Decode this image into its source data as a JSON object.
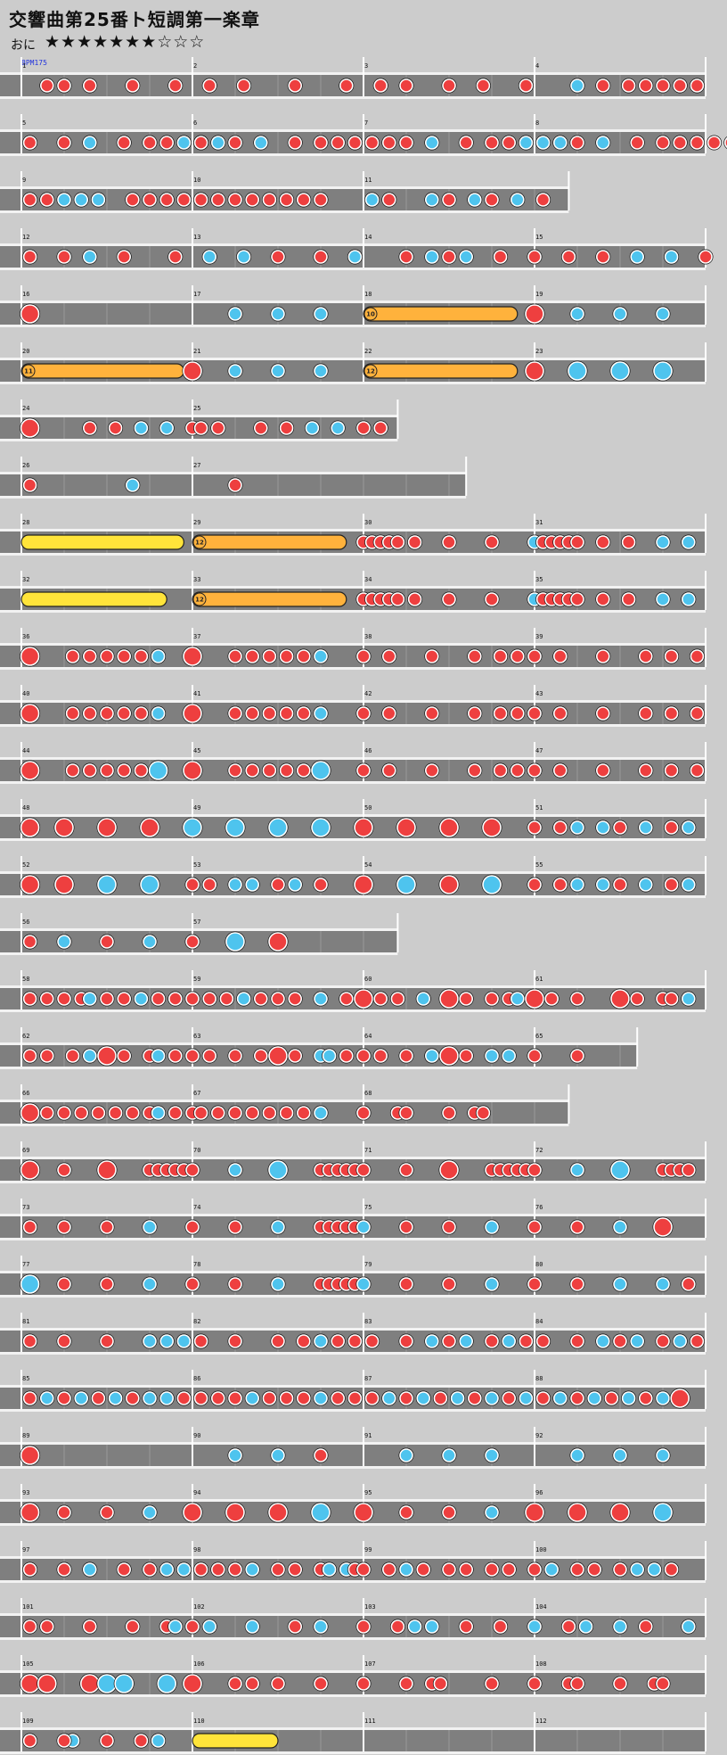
{
  "title": "交響曲第25番ト短調第一楽章",
  "difficulty": {
    "label": "おに",
    "stars": "★★★★★★★☆☆☆"
  },
  "bpm_label": "BPM175",
  "colors": {
    "background": "#cccccc",
    "lane": "#7f7f7f",
    "don": "#ee3f3f",
    "ka": "#4ec4ee",
    "drumroll": "#ffb23c",
    "balloon": "#ffe43a"
  },
  "rows": [
    {
      "measures": [
        1,
        2,
        3,
        4
      ],
      "end": 4,
      "notes": "r.15 r.25 r.4 r.65 r.9 r1.1 r1.3 r1.6 r1.9 r2.1 r2.25 r2.5 r2.7 r2.95 b3.25 r3.4 r3.55 r3.65 r3.75 r3.85 r3.95"
    },
    {
      "measures": [
        5,
        6,
        7,
        8
      ],
      "end": 4,
      "notes": "r.05 r.25 b.4 r.6 r.75 r.85 b.95 b1.05 b1.15 r1.05 r1.25 b1.4 r1.6 r1.75 r1.85 r1.95 r2.05 r2.15 r2.25 b2.4 r2.6 r2.75 r2.85 b2.95 b3.05 b3.15 r3.25 b3.4 r3.6 r3.75 r3.85 r3.95 r4.05 r4.15"
    },
    {
      "measures": [
        9,
        10,
        11
      ],
      "end": 3.2,
      "notes": "r.05 r.15 b.25 b.35 b.45 r.65 r.75 r.85 r.95 r1.05 r1.15 r1.25 r1.35 r1.45 r1.55 r1.65 r1.75 b2.05 r2.15 b2.4 r2.5 b2.65 r2.75 b2.9 r3.05"
    },
    {
      "measures": [
        12,
        13,
        14,
        15
      ],
      "end": 4,
      "notes": "r.05 r.25 b.4 r.6 r.9 b1.1 b1.3 r1.5 r1.75 b1.95 r2.25 b2.4 r2.5 b2.6 r2.8 r3 r3.2 r3.4 b3.6 b3.8 r4 r4.25 b4.4 r4.6 r4.9 b5.1 b5.3 b5.4 b5.5"
    },
    {
      "measures": [
        16,
        17,
        18,
        19
      ],
      "end": 4,
      "notes": "R.05 b1.25 b1.5 b1.75 D2:2.9:10 R3.0 b3.25 b3.5 b3.75"
    },
    {
      "measures": [
        20,
        21,
        22,
        23
      ],
      "end": 4,
      "notes": "D.0:.95:11 R1.0 b1.25 b1.5 b1.75 D2:2.9:12 R3.0 B3.25 B3.5 B3.75"
    },
    {
      "measures": [
        24,
        25
      ],
      "end": 2.2,
      "notes": "R.05 r.4 r.55 b.7 b.85 r1.0 r1.05 r1.15 r1.4 r1.55 b1.7 b1.85 r2.0 r2.1"
    },
    {
      "measures": [
        26,
        27
      ],
      "end": 2.6,
      "notes": "r.05 b.65 r1.25"
    },
    {
      "measures": [
        28,
        29,
        30,
        31
      ],
      "end": 4,
      "notes": "Y.0:.95 D1:1.9:12 r2.0 r2.05 r2.1 r2.15 r2.2 r2.3 r2.5 r2.75 b3.0 r3.05 r3.1 r3.15 r3.2 r3.25 r3.4 r3.55 b3.75 b3.9"
    },
    {
      "measures": [
        32,
        33,
        34,
        35
      ],
      "end": 4,
      "notes": "Y.0:.85 D1:1.9:12 r2.0 r2.05 r2.1 r2.15 r2.2 r2.3 r2.5 r2.75 b3.0 r3.05 r3.1 r3.15 r3.2 r3.25 r3.4 r3.55 b3.75 b3.9"
    },
    {
      "measures": [
        36,
        37,
        38,
        39
      ],
      "end": 4,
      "notes": "R.05 r.3 r.4 r.5 r.6 r.7 b.8 R1.0 r1.25 r1.35 r1.45 r1.55 r1.65 b1.75 r2.0 r2.15 r2.4 r2.65 r2.8 r2.9 r3.0 r3.15 r3.4 r3.65 r3.8 r3.95"
    },
    {
      "measures": [
        40,
        41,
        42,
        43
      ],
      "end": 4,
      "notes": "R.05 r.3 r.4 r.5 r.6 r.7 b.8 R1.0 r1.25 r1.35 r1.45 r1.55 r1.65 b1.75 r2.0 r2.15 r2.4 r2.65 r2.8 r2.9 r3.0 r3.15 r3.4 r3.65 r3.8 r3.95"
    },
    {
      "measures": [
        44,
        45,
        46,
        47
      ],
      "end": 4,
      "notes": "R.05 r.3 r.4 r.5 r.6 r.7 B.8 R1.0 r1.25 r1.35 r1.45 r1.55 r1.65 B1.75 r2.0 r2.15 r2.4 r2.65 r2.8 r2.9 r3.0 r3.15 r3.4 r3.65 r3.8 r3.95"
    },
    {
      "measures": [
        48,
        49,
        50,
        51
      ],
      "end": 4,
      "notes": "R.05 R.25 R.5 R.75 B1.0 B1.25 B1.5 B1.75 R2.0 R2.25 R2.5 R2.75 r3.0 r3.15 b3.25 b3.4 r3.5 b3.65 r3.8 b3.9"
    },
    {
      "measures": [
        52,
        53,
        54,
        55
      ],
      "end": 4,
      "notes": "R.05 R.25 B.5 B.75 r1.0 r1.1 b1.25 b1.35 r1.5 b1.6 r1.75 R2.0 B2.25 R2.5 B2.75 r3.0 r3.15 b3.25 b3.4 r3.5 b3.65 r3.8 b3.9"
    },
    {
      "measures": [
        56,
        57
      ],
      "end": 2.2,
      "notes": "r.05 b.25 r.5 b.75 r1.0 B1.25 R1.5"
    },
    {
      "measures": [
        58,
        59,
        60,
        61
      ],
      "end": 4,
      "notes": "r.05 r.15 r.25 r.35 b.4 r.5 r.6 b.7 r.8 r.9 r1.0 r1.1 r1.2 b1.3 r1.4 r1.5 r1.6 b1.75 r1.9 R2.0 r2.1 r2.2 b2.35 R2.5 r2.6 r2.75 r2.85 b2.9 R3.0 r3.1 r3.25 R3.5 r3.6 r3.75 r3.8 b3.9"
    },
    {
      "measures": [
        62,
        63,
        64,
        65
      ],
      "end": 3.6,
      "notes": "r.05 r.15 r.3 b.4 R.5 r.6 r.75 b.8 r.9 r1.0 r1.1 r1.25 r1.4 R1.5 r1.6 b1.75 b1.8 r1.9 r2.0 r2.1 r2.25 r2.4 b2.4 R2.5 r2.6 b2.75 b2.85 r3.0 r3.25"
    },
    {
      "measures": [
        66,
        67,
        68
      ],
      "end": 3.2,
      "notes": "R.05 r.15 r.25 r.35 r.45 r.55 r.65 r.75 b.8 r.9 r1.0 r1.05 r1.15 r1.25 r1.35 r1.45 r1.55 r1.65 b1.75 r2.0 r2.2 r2.25 r2.5 r2.65 r2.7"
    },
    {
      "measures": [
        69,
        70,
        71,
        72
      ],
      "end": 4,
      "notes": "R.05 r.25 R.5 r.75 r.8 r.85 r.9 r.95 r1.0 b1.25 B1.5 r1.75 r1.8 r1.85 r1.9 r1.95 r2.0 r2.25 R2.5 r2.75 r2.8 r2.85 r2.9 r2.95 r3.0 b3.25 B3.5 r3.75 r3.8 r3.85 r3.9"
    },
    {
      "measures": [
        73,
        74,
        75,
        76
      ],
      "end": 4,
      "notes": "r.05 r.25 r.5 b.75 r1.0 r1.25 b1.5 r1.75 r1.8 r1.85 r1.9 r1.95 b2.0 r2.25 r2.5 b2.75 r3.0 r3.25 b3.5 R3.75"
    },
    {
      "measures": [
        77,
        78,
        79,
        80
      ],
      "end": 4,
      "notes": "B.05 r.25 r.5 b.75 r1.0 r1.25 b1.5 r1.75 r1.8 r1.85 r1.9 r1.95 b2.0 r2.25 r2.5 b2.75 r3.0 r3.25 b3.5 b3.75 r3.9"
    },
    {
      "measures": [
        81,
        82,
        83,
        84
      ],
      "end": 4,
      "notes": "r.05 r.25 r.5 b.75 b.85 b.95 r1.05 r1.25 r1.5 r1.65 b1.75 r1.85 r1.95 r2.05 r2.25 b2.4 r2.5 b2.6 r2.75 b2.85 r2.95 r3.05 r3.25 b3.4 r3.5 b3.6 r3.75 b3.85 r3.95"
    },
    {
      "measures": [
        85,
        86,
        87,
        88
      ],
      "end": 4,
      "notes": "r.05 b.15 r.25 b.35 r.45 b.55 r.65 b.75 b.85 r.95 r1.05 r1.15 r1.25 b1.35 r1.45 r1.55 r1.65 b1.75 r1.85 r1.95 r2.05 b2.15 r2.25 b2.35 r2.45 b2.55 r2.65 b2.75 r2.85 b2.95 r3.05 b3.15 r3.25 b3.35 r3.45 b3.55 r3.65 b3.75 R3.85"
    },
    {
      "measures": [
        89,
        90,
        91,
        92
      ],
      "end": 4,
      "notes": "R.05 b1.25 b1.5 r1.75 b2.25 b2.5 b2.75 b3.25 b3.5 b3.75"
    },
    {
      "measures": [
        93,
        94,
        95,
        96
      ],
      "end": 4,
      "notes": "R.05 r.25 r.5 b.75 R1.0 R1.25 R1.5 B1.75 R2.0 r2.25 r2.5 b2.75 R3.0 R3.25 R3.5 B3.75"
    },
    {
      "measures": [
        97,
        98,
        99,
        100
      ],
      "end": 4,
      "notes": "r.05 r.25 b.4 r.6 r.75 b.85 b.95 r1.05 r1.15 r1.25 b1.35 r1.5 r1.6 r1.75 b1.8 b1.9 r1.95 r2.0 r2.15 b2.25 r2.35 r2.5 r2.6 r2.75 r2.85 r3.0 b3.1 r3.25 r3.35 r3.5 b3.6 b3.7 r3.8"
    },
    {
      "measures": [
        101,
        102,
        103,
        104
      ],
      "end": 4,
      "notes": "r.05 r.15 r.4 r.65 r.85 b.9 r1.0 b1.1 b1.35 r1.6 b1.75 r2.0 r2.2 b2.3 b2.4 r2.6 r2.8 b3.0 r3.2 b3.3 b3.5 r3.65 b3.9"
    },
    {
      "measures": [
        105,
        106,
        107,
        108
      ],
      "end": 4,
      "notes": "R.05 R.15 R.4 B.5 B.6 B.85 R1.0 r1.25 r1.35 r1.5 r1.75 r2.0 r2.25 r2.4 r2.45 r2.75 r3.0 r3.2 r3.25 r3.5 r3.7 r3.75"
    },
    {
      "measures": [
        109,
        110,
        111,
        112
      ],
      "end": 4,
      "notes": "r.05 b.3 r.25 r.5 r.7 b.8 Y1.0:1.5"
    }
  ]
}
